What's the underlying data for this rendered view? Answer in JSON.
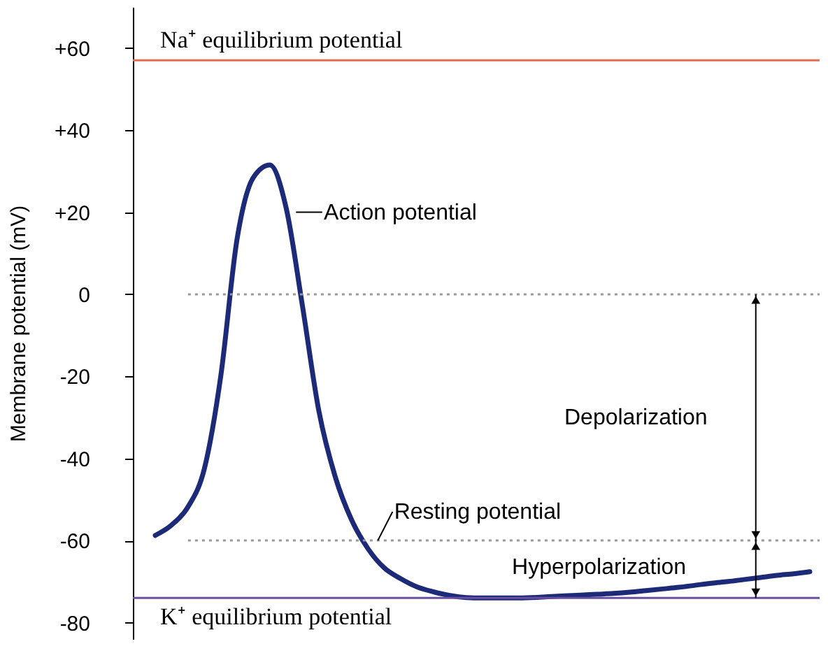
{
  "chart_data": {
    "type": "line",
    "ylabel": "Membrane potential (mV)",
    "categories": [
      null,
      null,
      null,
      null,
      null,
      null,
      null,
      null,
      null,
      null,
      null,
      null,
      null,
      null,
      null,
      null,
      null,
      null,
      null,
      null,
      null,
      null,
      null,
      null,
      null,
      null,
      null,
      null,
      null,
      null,
      null,
      null,
      null,
      null,
      null,
      null,
      null,
      null,
      null,
      null,
      null
    ],
    "series": [
      {
        "color": "#1c2a78",
        "values": [
          -58.75,
          -56.2,
          -51.8,
          -42.5,
          -20,
          13.5,
          28.5,
          31.5,
          21,
          -3,
          -28.5,
          -44.5,
          -55,
          -62,
          -66.7,
          -69.3,
          -71.3,
          -72.5,
          -73.4,
          -73.9,
          -74,
          -74,
          -74,
          -73.9,
          -73.7,
          -73.5,
          -73.3,
          -73.1,
          -72.9,
          -72.6,
          -72.2,
          -71.8,
          -71.4,
          -70.9,
          -70.4,
          -70,
          -69.5,
          -69,
          -68.5,
          -68.1,
          -67.6
        ]
      }
    ],
    "ylim": [
      -84,
      70
    ],
    "yticks": [
      -80,
      -60,
      -40,
      -20,
      0,
      {
        "value": 20,
        "label": "+20"
      },
      {
        "value": 40,
        "label": "+40"
      },
      {
        "value": 60,
        "label": "+60"
      }
    ],
    "ref_lines": [
      {
        "axis": "y",
        "value": 57,
        "label": "Na⁺ equilibrium potential",
        "color": "#e07050"
      },
      {
        "axis": "y",
        "value": -74,
        "label": "K⁺ equilibrium potential",
        "color": "#6a4fa0"
      },
      {
        "axis": "y",
        "value": 0,
        "color": "#999999",
        "line_style": "dotted"
      },
      {
        "axis": "y",
        "value": -60,
        "color": "#999999",
        "line_style": "dotted"
      }
    ],
    "annotations": [
      "Action potential",
      "Resting potential",
      "Depolarization",
      "Hyperpolarization"
    ],
    "grid": false,
    "marker": "none",
    "line_style": "solid"
  }
}
